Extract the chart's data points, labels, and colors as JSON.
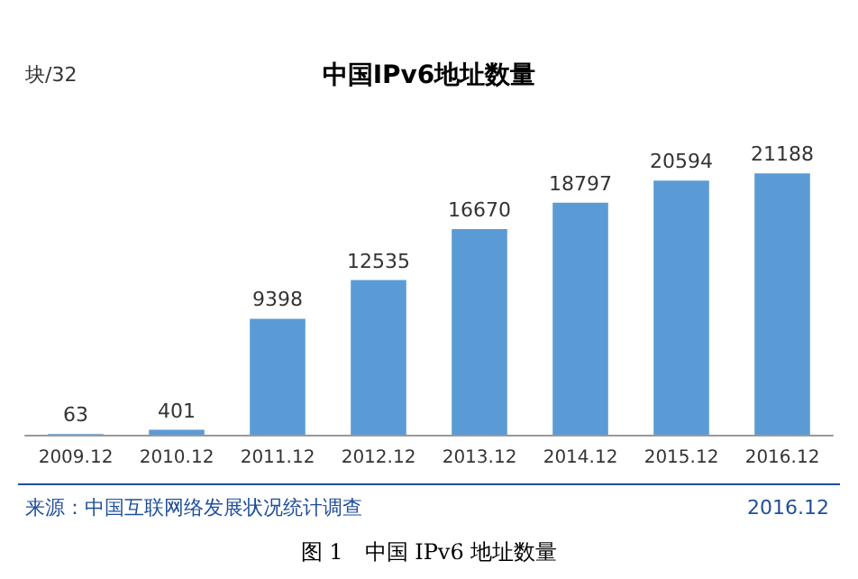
{
  "chart_data": {
    "type": "bar",
    "title": "中国IPv6地址数量",
    "ylabel": "块/32",
    "categories": [
      "2009.12",
      "2010.12",
      "2011.12",
      "2012.12",
      "2013.12",
      "2014.12",
      "2015.12",
      "2016.12"
    ],
    "values": [
      63,
      401,
      9398,
      12535,
      16670,
      18797,
      20594,
      21188
    ],
    "color": "#5b9bd5",
    "data_labels": true,
    "annotations": [
      "来源：中国互联网络发展状况统计调查",
      "2016.12",
      "图 1　中国 IPv6 地址数量"
    ]
  }
}
